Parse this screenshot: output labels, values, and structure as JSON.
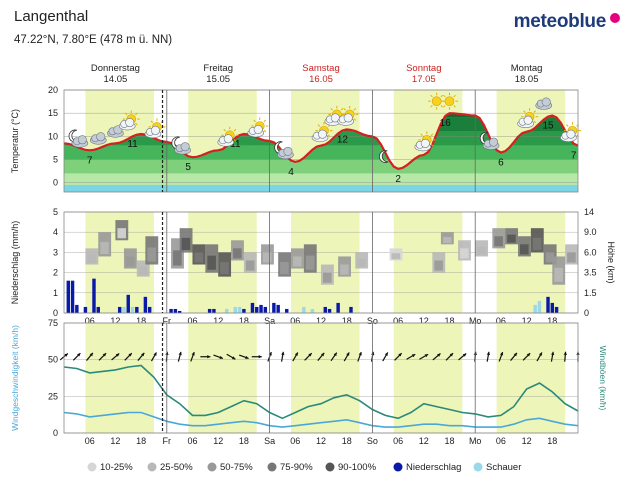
{
  "header": {
    "location": "Langenthal",
    "coords": "47.22°N, 7.80°E (478 m ü. NN)",
    "brand": "meteoblue"
  },
  "colors": {
    "day_shade": "#eef5b8",
    "temp_line": "#d42020",
    "precip_bar": "#0a1aa8",
    "shower_bar": "#9ad8ea",
    "wind_speed": "#4aa8d8",
    "wind_gust": "#2a8a7a",
    "weekend": "#cc2222"
  },
  "chart_data": [
    {
      "type": "area",
      "panel": "temperature",
      "ylabel": "Temperatur (°C)",
      "ylim": [
        -2,
        20
      ],
      "yticks": [
        0,
        5,
        10,
        15,
        20
      ],
      "days": [
        {
          "name": "Donnerstag",
          "date": "14.05",
          "weekend": false
        },
        {
          "name": "Freitag",
          "date": "15.05",
          "weekend": false
        },
        {
          "name": "Samstag",
          "date": "16.05",
          "weekend": true
        },
        {
          "name": "Sonntag",
          "date": "17.05",
          "weekend": true
        },
        {
          "name": "Montag",
          "date": "18.05",
          "weekend": false
        }
      ],
      "hours": [
        0,
        6,
        12,
        18,
        24,
        30,
        36,
        42,
        48,
        54,
        60,
        66,
        72,
        78,
        84,
        90,
        96,
        102,
        108,
        114,
        120
      ],
      "temperature": [
        8.5,
        7,
        8.5,
        10.5,
        8.8,
        5.5,
        7,
        10.5,
        9,
        4.5,
        8,
        11.5,
        10,
        3,
        6,
        15,
        14.5,
        6.5,
        11,
        14.5,
        8
      ],
      "min_labels": [
        {
          "hour": 6,
          "value": "7"
        },
        {
          "hour": 29,
          "value": "5"
        },
        {
          "hour": 53,
          "value": "4"
        },
        {
          "hour": 78,
          "value": "2"
        },
        {
          "hour": 102,
          "value": "6"
        },
        {
          "hour": 119,
          "value": "7"
        }
      ],
      "max_labels": [
        {
          "hour": 16,
          "value": "11"
        },
        {
          "hour": 40,
          "value": "11"
        },
        {
          "hour": 65,
          "value": "12"
        },
        {
          "hour": 89,
          "value": "16"
        },
        {
          "hour": 113,
          "value": "15"
        }
      ],
      "icons": [
        {
          "hour": 3,
          "icon": "moon-cloud-icon",
          "night": true
        },
        {
          "hour": 8,
          "icon": "cloud-icon",
          "night": false
        },
        {
          "hour": 12,
          "icon": "cloud-icon",
          "night": false
        },
        {
          "hour": 15,
          "icon": "sun-cloud-icon",
          "night": false
        },
        {
          "hour": 21,
          "icon": "sun-cloud-icon",
          "night": false
        },
        {
          "hour": 27,
          "icon": "moon-cloud-icon",
          "night": true
        },
        {
          "hour": 38,
          "icon": "sun-cloud-icon",
          "night": false
        },
        {
          "hour": 45,
          "icon": "sun-cloud-icon",
          "night": false
        },
        {
          "hour": 51,
          "icon": "moon-cloud-icon",
          "night": true
        },
        {
          "hour": 60,
          "icon": "sun-cloud-icon",
          "night": false
        },
        {
          "hour": 63,
          "icon": "sun-cloud-icon",
          "night": false
        },
        {
          "hour": 66,
          "icon": "sun-cloud-icon",
          "night": false
        },
        {
          "hour": 75,
          "icon": "moon-icon",
          "night": true
        },
        {
          "hour": 84,
          "icon": "sun-cloud-icon",
          "night": false
        },
        {
          "hour": 87,
          "icon": "sun-icon",
          "night": false
        },
        {
          "hour": 90,
          "icon": "sun-icon",
          "night": false
        },
        {
          "hour": 99,
          "icon": "moon-cloud-icon",
          "night": true
        },
        {
          "hour": 108,
          "icon": "sun-cloud-icon",
          "night": false
        },
        {
          "hour": 112,
          "icon": "cloud-icon",
          "night": false
        },
        {
          "hour": 118,
          "icon": "sun-cloud-icon",
          "night": false
        }
      ]
    },
    {
      "type": "bar",
      "panel": "precipitation",
      "ylabel": "Niederschlag (mm/h)",
      "ylabel_right": "Höhe (km)",
      "ylim": [
        0,
        5
      ],
      "yticks": [
        0,
        1,
        2,
        3,
        4,
        5
      ],
      "yticks_right": [
        "0",
        "1.5",
        "3.5",
        "6.0",
        "9.0",
        "14"
      ],
      "precip_bars": [
        {
          "hour": 1,
          "value": 1.6
        },
        {
          "hour": 2,
          "value": 1.6
        },
        {
          "hour": 3,
          "value": 0.4
        },
        {
          "hour": 5,
          "value": 0.3
        },
        {
          "hour": 7,
          "value": 1.7
        },
        {
          "hour": 8,
          "value": 0.3
        },
        {
          "hour": 13,
          "value": 0.3
        },
        {
          "hour": 15,
          "value": 0.9
        },
        {
          "hour": 17,
          "value": 0.3
        },
        {
          "hour": 19,
          "value": 0.8
        },
        {
          "hour": 20,
          "value": 0.3
        },
        {
          "hour": 25,
          "value": 0.2
        },
        {
          "hour": 26,
          "value": 0.2
        },
        {
          "hour": 27,
          "value": 0.1
        },
        {
          "hour": 34,
          "value": 0.2
        },
        {
          "hour": 35,
          "value": 0.2
        },
        {
          "hour": 42,
          "value": 0.2
        },
        {
          "hour": 44,
          "value": 0.5
        },
        {
          "hour": 45,
          "value": 0.3
        },
        {
          "hour": 46,
          "value": 0.4
        },
        {
          "hour": 47,
          "value": 0.3
        },
        {
          "hour": 49,
          "value": 0.5
        },
        {
          "hour": 50,
          "value": 0.4
        },
        {
          "hour": 52,
          "value": 0.2
        },
        {
          "hour": 61,
          "value": 0.3
        },
        {
          "hour": 62,
          "value": 0.2
        },
        {
          "hour": 64,
          "value": 0.5
        },
        {
          "hour": 67,
          "value": 0.3
        },
        {
          "hour": 113,
          "value": 0.8
        },
        {
          "hour": 114,
          "value": 0.5
        },
        {
          "hour": 115,
          "value": 0.3
        }
      ],
      "shower_bars": [
        {
          "hour": 14,
          "value": 0.3
        },
        {
          "hour": 16,
          "value": 0.3
        },
        {
          "hour": 38,
          "value": 0.2
        },
        {
          "hour": 40,
          "value": 0.3
        },
        {
          "hour": 41,
          "value": 0.3
        },
        {
          "hour": 56,
          "value": 0.3
        },
        {
          "hour": 58,
          "value": 0.2
        },
        {
          "hour": 110,
          "value": 0.4
        },
        {
          "hour": 111,
          "value": 0.6
        }
      ]
    },
    {
      "type": "line",
      "panel": "wind",
      "ylabel": "Windgeschwindigkeit (km/h)",
      "ylabel_right": "Windböen (km/h)",
      "ylim": [
        0,
        75
      ],
      "yticks": [
        0,
        25,
        50,
        75
      ],
      "hours": [
        0,
        3,
        6,
        9,
        12,
        15,
        18,
        21,
        24,
        27,
        30,
        33,
        36,
        39,
        42,
        45,
        48,
        51,
        54,
        57,
        60,
        63,
        66,
        69,
        72,
        75,
        78,
        81,
        84,
        87,
        90,
        93,
        96,
        99,
        102,
        105,
        108,
        111,
        114,
        117,
        120
      ],
      "gusts": [
        45,
        44,
        41,
        42,
        43,
        45,
        46,
        38,
        26,
        20,
        12,
        12,
        14,
        18,
        22,
        20,
        14,
        10,
        14,
        18,
        20,
        24,
        26,
        22,
        16,
        12,
        10,
        14,
        20,
        18,
        16,
        14,
        13,
        11,
        12,
        18,
        30,
        34,
        28,
        20,
        15
      ],
      "speed": [
        14,
        13,
        11,
        12,
        13,
        14,
        14,
        11,
        8,
        6,
        5,
        5,
        6,
        7,
        8,
        7,
        5,
        4,
        5,
        6,
        7,
        8,
        9,
        7,
        5,
        4,
        4,
        5,
        6,
        6,
        5,
        5,
        4,
        4,
        4,
        6,
        9,
        10,
        8,
        6,
        5
      ],
      "wind_dir_hours": [
        0,
        3,
        6,
        9,
        12,
        15,
        18,
        21,
        24,
        27,
        30,
        33,
        36,
        39,
        42,
        45,
        48,
        51,
        54,
        57,
        60,
        63,
        66,
        69,
        72,
        75,
        78,
        81,
        84,
        87,
        90,
        93,
        96,
        99,
        102,
        105,
        108,
        111,
        114,
        117,
        120
      ],
      "wind_dir_angles": [
        -40,
        -45,
        -50,
        -45,
        -40,
        -45,
        -50,
        -60,
        -85,
        -75,
        -70,
        0,
        20,
        30,
        20,
        0,
        -70,
        -80,
        -60,
        -45,
        -50,
        -55,
        -60,
        -70,
        -80,
        -60,
        -45,
        -30,
        -30,
        -40,
        -45,
        -40,
        -85,
        -80,
        -70,
        -50,
        -45,
        -60,
        -80,
        -85,
        -90
      ],
      "x_tick_labels": [
        "06",
        "12",
        "18",
        "Fr",
        "06",
        "12",
        "18",
        "Sa",
        "06",
        "12",
        "18",
        "So",
        "06",
        "12",
        "18",
        "Mo",
        "06",
        "12",
        "18"
      ]
    }
  ],
  "legend": [
    {
      "label": "10-25%",
      "color": "#d6d6d6",
      "kind": "dot"
    },
    {
      "label": "25-50%",
      "color": "#b8b8b8",
      "kind": "dot"
    },
    {
      "label": "50-75%",
      "color": "#999999",
      "kind": "dot"
    },
    {
      "label": "75-90%",
      "color": "#777777",
      "kind": "dot"
    },
    {
      "label": "90-100%",
      "color": "#555555",
      "kind": "dot"
    },
    {
      "label": "Niederschlag",
      "color": "#0a1aa8",
      "kind": "dot"
    },
    {
      "label": "Schauer",
      "color": "#9ad8ea",
      "kind": "dot"
    }
  ]
}
